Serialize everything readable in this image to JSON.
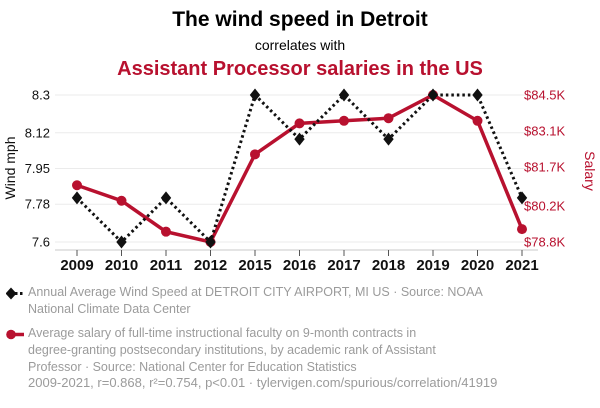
{
  "header": {
    "title": "The wind speed in Detroit",
    "subtitle": "correlates with",
    "title2": "Assistant Processor salaries in the US",
    "accent_color": "#b8112f"
  },
  "chart_data": {
    "type": "line",
    "categories": [
      "2009",
      "2010",
      "2011",
      "2012",
      "2015",
      "2016",
      "2017",
      "2018",
      "2019",
      "2020",
      "2021"
    ],
    "series": [
      {
        "name": "Annual Average Wind Speed at DETROIT CITY AIRPORT, MI US",
        "axis": "left",
        "color": "#111111",
        "line_style": "dashed",
        "marker": "diamond",
        "values": [
          7.81,
          7.6,
          7.81,
          7.6,
          8.3,
          8.09,
          8.3,
          8.09,
          8.3,
          8.3,
          7.81
        ]
      },
      {
        "name": "Average salary of full-time instructional faculty, academic rank of Assistant Professor ($K)",
        "axis": "right",
        "color": "#b8112f",
        "line_style": "solid",
        "marker": "circle",
        "values": [
          81.0,
          80.4,
          79.2,
          78.8,
          82.2,
          83.4,
          83.5,
          83.6,
          84.5,
          83.5,
          79.3
        ]
      }
    ],
    "left_axis": {
      "label": "Wind mph",
      "tick_labels": [
        "8.3",
        "8.12",
        "7.95",
        "7.78",
        "7.6"
      ],
      "tick_values": [
        8.3,
        8.12,
        7.95,
        7.78,
        7.6
      ],
      "min": 7.6,
      "max": 8.3
    },
    "right_axis": {
      "label": "Salary",
      "tick_labels": [
        "$84.5K",
        "$83.1K",
        "$81.7K",
        "$80.2K",
        "$78.8K"
      ],
      "tick_values": [
        84.5,
        83.1,
        81.7,
        80.2,
        78.8
      ],
      "min": 78.8,
      "max": 84.5
    },
    "grid": true,
    "legend_position": "bottom"
  },
  "legend": {
    "items": [
      {
        "marker": "black-diamond-dashed",
        "lines": [
          "Annual Average Wind Speed at DETROIT CITY AIRPORT, MI US · Source: NOAA",
          "National Climate Data Center"
        ]
      },
      {
        "marker": "red-circle-solid",
        "lines": [
          "Average salary of full-time instructional faculty on 9-month contracts in",
          "degree-granting postsecondary institutions, by academic rank of Assistant",
          "Professor · Source: National Center for Education Statistics"
        ]
      }
    ]
  },
  "footer": {
    "stats": "2009-2021, r=0.868, r²=0.754, p<0.01 · tylervigen.com/spurious/correlation/41919"
  }
}
